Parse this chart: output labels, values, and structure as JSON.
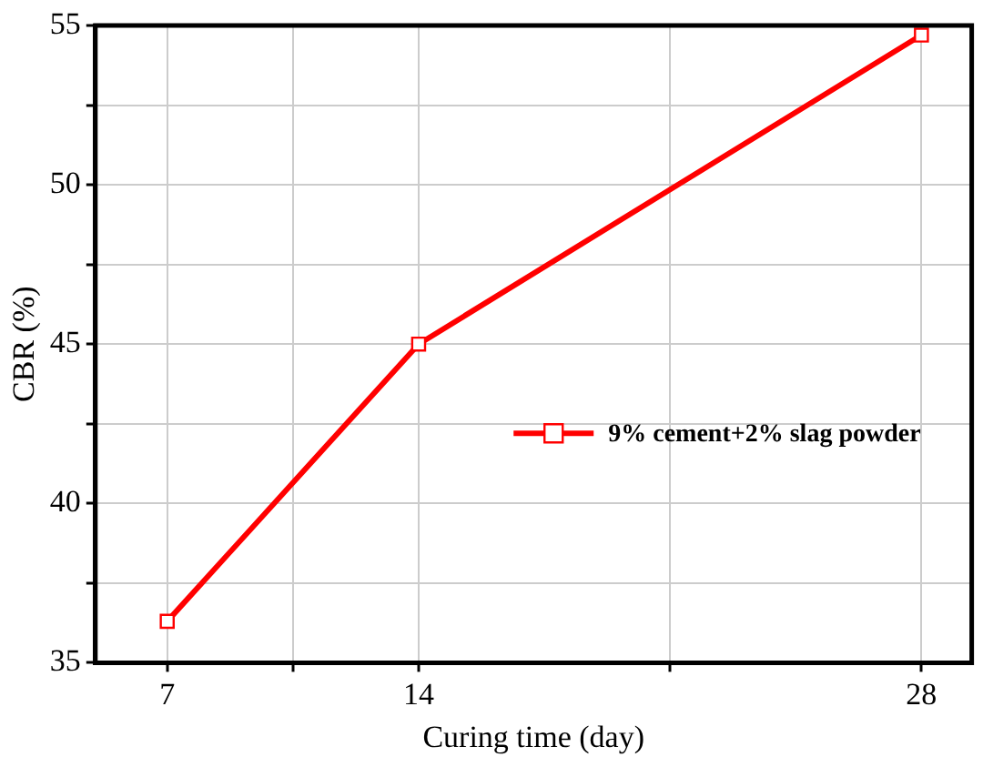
{
  "chart_data": {
    "type": "line",
    "xlabel": "Curing time (day)",
    "ylabel": "CBR (%)",
    "x": [
      7,
      14,
      28
    ],
    "series": [
      {
        "name": "9% cement+2% slag powder",
        "color": "#ff0000",
        "values": [
          36.3,
          45.0,
          54.7
        ]
      }
    ],
    "xlim": [
      5,
      29.4
    ],
    "xticks": [
      7,
      {
        "value": 10.5,
        "label": null
      },
      14,
      {
        "value": 21,
        "label": null
      },
      28
    ],
    "ylim": [
      35,
      55
    ],
    "yticks": [
      35,
      {
        "value": 37.5,
        "label": null
      },
      40,
      {
        "value": 42.5,
        "label": null
      },
      45,
      {
        "value": 47.5,
        "label": null
      },
      50,
      {
        "value": 52.5,
        "label": null
      },
      55
    ],
    "grid": true,
    "legend": "right",
    "marker": "square",
    "line_style": "solid"
  }
}
